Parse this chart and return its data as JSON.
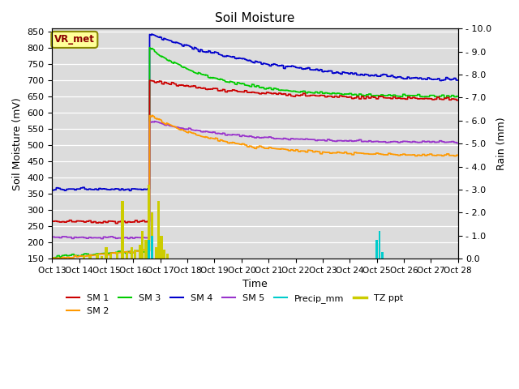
{
  "title": "Soil Moisture",
  "xlabel": "Time",
  "ylabel_left": "Soil Moisture (mV)",
  "ylabel_right": "Rain (mm)",
  "ylim_left": [
    150,
    860
  ],
  "ylim_right": [
    0.0,
    10.0
  ],
  "yticks_left": [
    150,
    200,
    250,
    300,
    350,
    400,
    450,
    500,
    550,
    600,
    650,
    700,
    750,
    800,
    850
  ],
  "yticks_right": [
    0.0,
    1.0,
    2.0,
    3.0,
    4.0,
    5.0,
    6.0,
    7.0,
    8.0,
    9.0,
    10.0
  ],
  "xlim": [
    0,
    450
  ],
  "xtick_labels": [
    "Oct 13",
    "Oct 14",
    "Oct 15",
    "Oct 16",
    "Oct 17",
    "Oct 18",
    "Oct 19",
    "Oct 20",
    "Oct 21",
    "Oct 22",
    "Oct 23",
    "Oct 24",
    "Oct 25",
    "Oct 26",
    "Oct 27",
    "Oct 28"
  ],
  "xtick_positions": [
    0,
    30,
    60,
    90,
    120,
    150,
    180,
    210,
    240,
    270,
    300,
    330,
    360,
    390,
    420,
    450
  ],
  "annotation_text": "VR_met",
  "colors": {
    "SM1": "#cc0000",
    "SM2": "#ff9900",
    "SM3": "#00cc00",
    "SM4": "#0000cc",
    "SM5": "#9933cc",
    "Precip": "#00cccc",
    "TZ_ppt": "#cccc00",
    "bg": "#dcdcdc"
  },
  "right_tick_labels": [
    "0.0",
    "1.0",
    "2.0",
    "3.0",
    "4.0",
    "5.0",
    "6.0",
    "7.0",
    "8.0",
    "9.0",
    "10.0"
  ]
}
